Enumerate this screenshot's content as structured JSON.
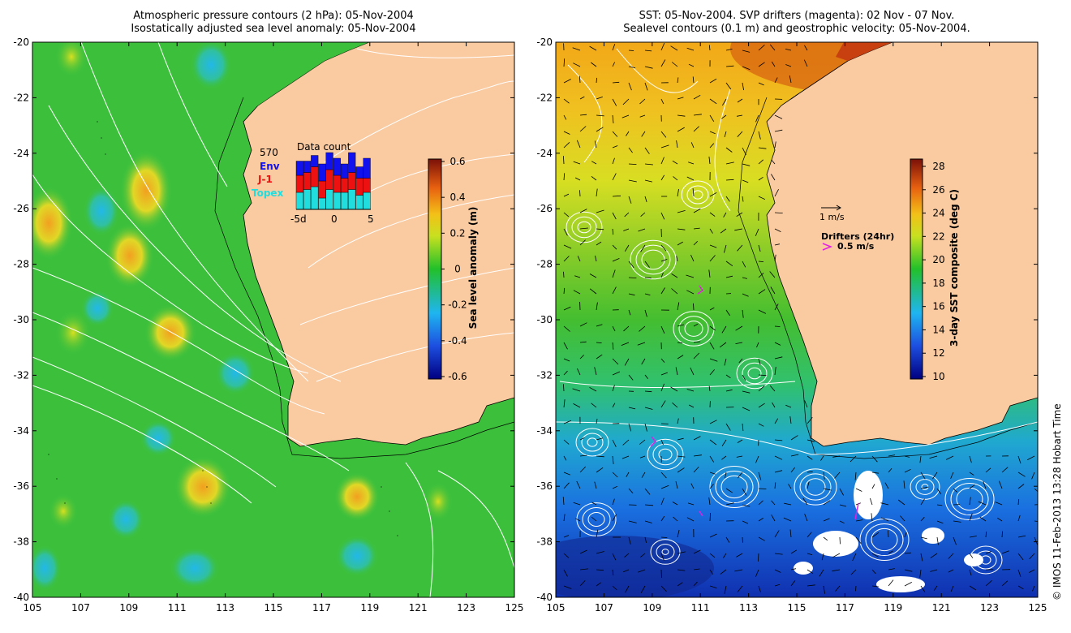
{
  "left_panel": {
    "title_line1": "Atmospheric pressure contours (2 hPa): 05-Nov-2004",
    "title_line2": "Isostatically adjusted sea level anomaly: 05-Nov-2004",
    "x_ticks": [
      "105",
      "107",
      "109",
      "111",
      "113",
      "115",
      "117",
      "119",
      "121",
      "123",
      "125"
    ],
    "y_ticks": [
      "-20",
      "-22",
      "-24",
      "-26",
      "-28",
      "-30",
      "-32",
      "-34",
      "-36",
      "-38",
      "-40"
    ],
    "colorbar": {
      "label": "Sea level anomaly (m)",
      "ticks": [
        "0.6",
        "0.4",
        "0.2",
        "0",
        "-0.2",
        "-0.4",
        "-0.6"
      ]
    },
    "inset": {
      "title": "Data count",
      "count": "570",
      "legend": [
        {
          "label": "Env",
          "color": "#1111ee"
        },
        {
          "label": "J-1",
          "color": "#ee1111"
        },
        {
          "label": "Topex",
          "color": "#22dddd"
        }
      ],
      "x_ticks": [
        "-5d",
        "0",
        "5"
      ],
      "bars": [
        {
          "topex": 0.3,
          "j1": 0.3,
          "env": 0.25
        },
        {
          "topex": 0.35,
          "j1": 0.3,
          "env": 0.2
        },
        {
          "topex": 0.4,
          "j1": 0.35,
          "env": 0.2
        },
        {
          "topex": 0.2,
          "j1": 0.3,
          "env": 0.3
        },
        {
          "topex": 0.35,
          "j1": 0.35,
          "env": 0.3
        },
        {
          "topex": 0.3,
          "j1": 0.3,
          "env": 0.3
        },
        {
          "topex": 0.3,
          "j1": 0.25,
          "env": 0.25
        },
        {
          "topex": 0.35,
          "j1": 0.3,
          "env": 0.35
        },
        {
          "topex": 0.25,
          "j1": 0.3,
          "env": 0.2
        },
        {
          "topex": 0.3,
          "j1": 0.25,
          "env": 0.35
        }
      ]
    }
  },
  "right_panel": {
    "title_line1": "SST: 05-Nov-2004. SVP drifters (magenta): 02 Nov - 07 Nov.",
    "title_line2": "Sealevel contours (0.1 m) and geostrophic velocity: 05-Nov-2004.",
    "x_ticks": [
      "105",
      "107",
      "109",
      "111",
      "113",
      "115",
      "117",
      "119",
      "121",
      "123",
      "125"
    ],
    "y_ticks": [
      "-20",
      "-22",
      "-24",
      "-26",
      "-28",
      "-30",
      "-32",
      "-34",
      "-36",
      "-38",
      "-40"
    ],
    "colorbar": {
      "label": "3-day SST composite (deg C)",
      "ticks": [
        "28",
        "26",
        "24",
        "22",
        "20",
        "18",
        "16",
        "14",
        "12",
        "10"
      ]
    },
    "velocity_scale_label": "1 m/s",
    "drifters_label": "Drifters (24hr)",
    "drifters_speed_label": "0.5 m/s"
  },
  "credit": "© IMOS 11-Feb-2013 13:28 Hobart Time",
  "colors": {
    "land": "#facaa0",
    "ocean_base": "#3cc03c",
    "contour": "#ffffff",
    "drifter": "#e020e0"
  }
}
